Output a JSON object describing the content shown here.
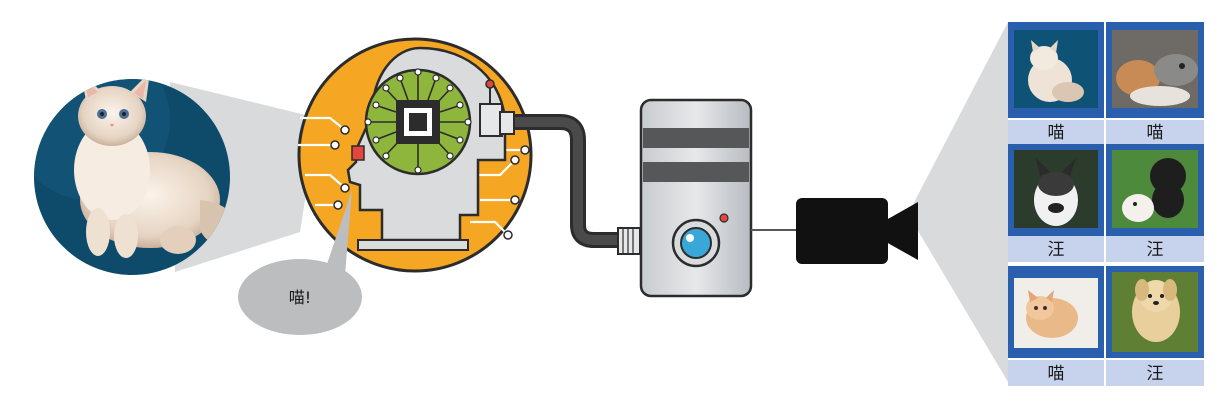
{
  "speech_bubble": {
    "text": "喵!"
  },
  "dataset": {
    "items": [
      {
        "label": "喵",
        "subject": "kitten-on-blue"
      },
      {
        "label": "喵",
        "subject": "cat-and-kitten"
      },
      {
        "label": "汪",
        "subject": "husky"
      },
      {
        "label": "汪",
        "subject": "black-and-white-dogs"
      },
      {
        "label": "喵",
        "subject": "kitten-on-white"
      },
      {
        "label": "汪",
        "subject": "fluffy-puppy"
      }
    ]
  },
  "colors": {
    "brain_orange": "#f5a623",
    "chip_green": "#8fb63c",
    "panel_blue": "#2a5fae",
    "label_bg": "#c7d3ec",
    "photo_bg": "#0e4a6a"
  }
}
